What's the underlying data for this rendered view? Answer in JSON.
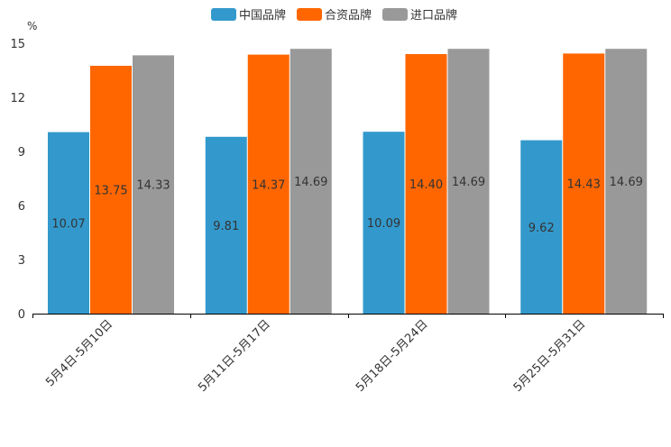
{
  "chart_data": {
    "type": "bar",
    "title": "",
    "xlabel": "",
    "ylabel": "%",
    "ylim": [
      0,
      15
    ],
    "yticks": [
      0,
      3,
      6,
      9,
      12,
      15
    ],
    "categories": [
      "5月4日-5月10日",
      "5月11日-5月17日",
      "5月18日-5月24日",
      "5月25日-5月31日"
    ],
    "series": [
      {
        "name": "中国品牌",
        "color": "#3399cc",
        "values": [
          10.07,
          9.81,
          10.09,
          9.62
        ],
        "labels": [
          "10.07",
          "9.81",
          "10.09",
          "9.62"
        ]
      },
      {
        "name": "合资品牌",
        "color": "#ff6600",
        "values": [
          13.75,
          14.37,
          14.4,
          14.43
        ],
        "labels": [
          "13.75",
          "14.37",
          "14.40",
          "14.43"
        ]
      },
      {
        "name": "进口品牌",
        "color": "#999999",
        "values": [
          14.33,
          14.69,
          14.69,
          14.69
        ],
        "labels": [
          "14.33",
          "14.69",
          "14.69",
          "14.69"
        ]
      }
    ],
    "legend_position": "top-center",
    "grid": false
  }
}
